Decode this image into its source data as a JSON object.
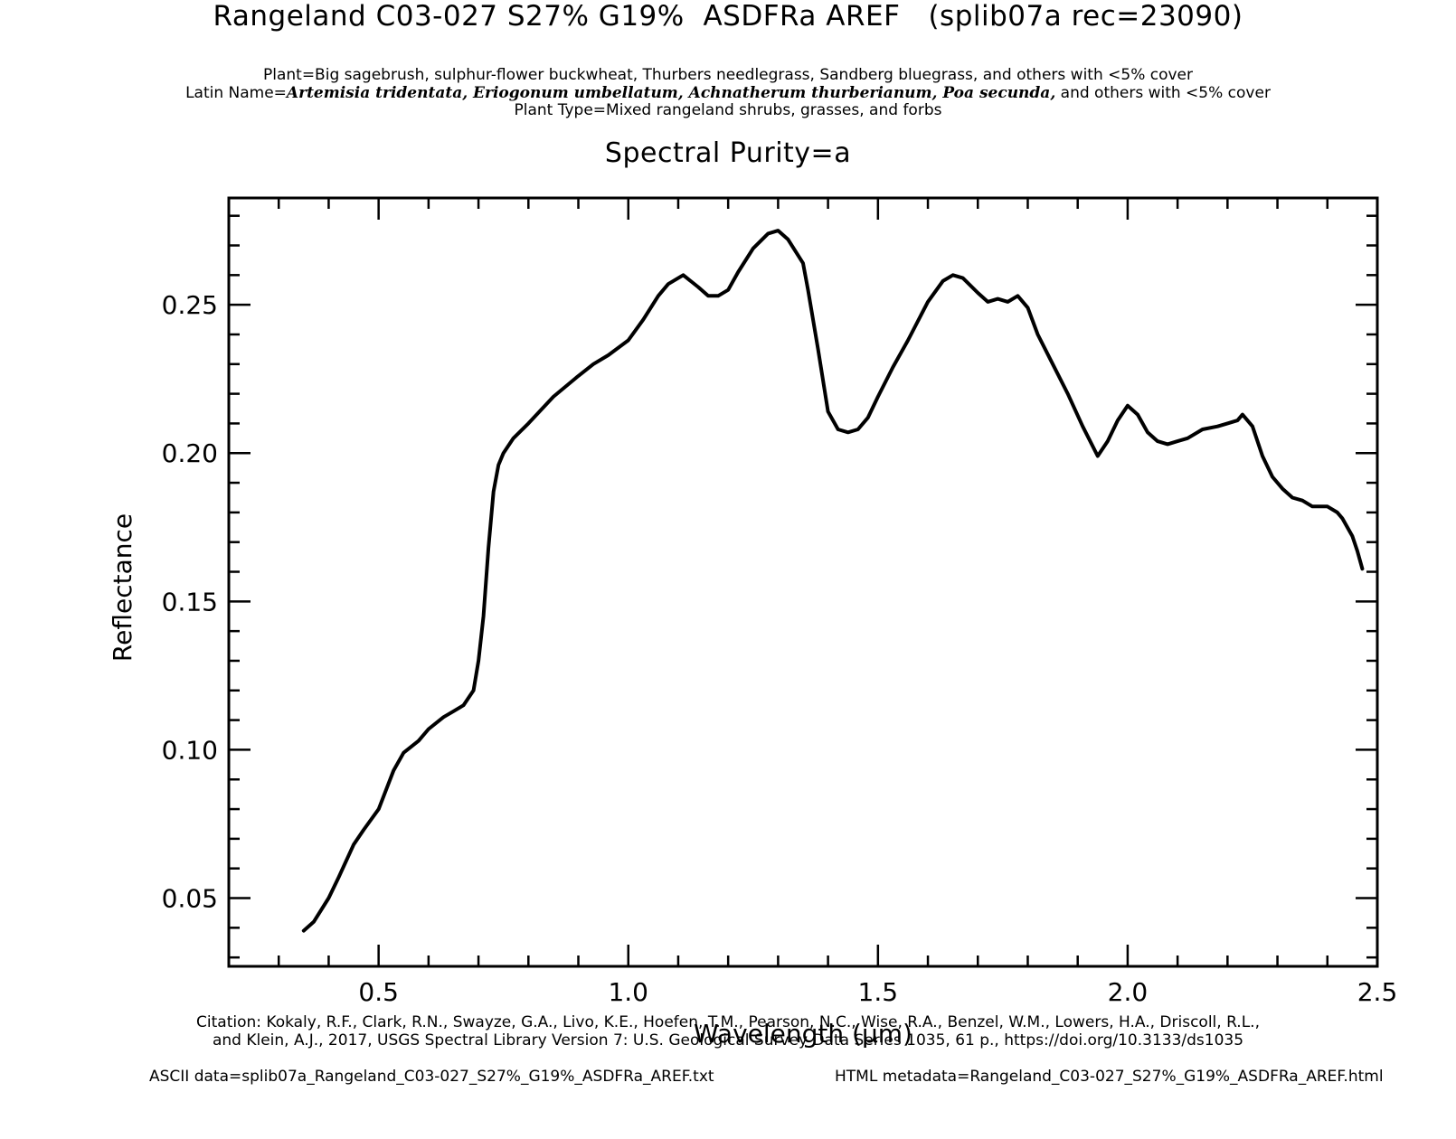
{
  "header": {
    "title": "Rangeland C03-027 S27% G19%  ASDFRa AREF   (splib07a rec=23090)",
    "plant": "Plant=Big sagebrush, sulphur-flower buckwheat, Thurbers needlegrass, Sandberg bluegrass, and others with <5% cover",
    "latin_prefix": "Latin Name=",
    "latin_names": "Artemisia tridentata, Eriogonum umbellatum, Achnatherum thurberianum, Poa secunda,",
    "latin_suffix": " and others with <5% cover",
    "plant_type": "Plant Type=Mixed rangeland shrubs, grasses, and forbs",
    "purity": "Spectral Purity=a"
  },
  "footer": {
    "citation_line1": "Citation: Kokaly, R.F., Clark, R.N., Swayze, G.A., Livo, K.E., Hoefen, T.M., Pearson, N.C., Wise, R.A., Benzel, W.M., Lowers, H.A., Driscoll, R.L.,",
    "citation_line2": "and Klein, A.J., 2017, USGS Spectral Library Version 7: U.S. Geological Survey Data Series 1035, 61 p., https://doi.org/10.3133/ds1035",
    "ascii": "ASCII data=splib07a_Rangeland_C03-027_S27%_G19%_ASDFRa_AREF.txt",
    "html": "HTML metadata=Rangeland_C03-027_S27%_G19%_ASDFRa_AREF.html"
  },
  "chart_data": {
    "type": "line",
    "xlabel": "Wavelength (μm)",
    "ylabel": "Reflectance",
    "xlim": [
      0.2,
      2.5
    ],
    "ylim": [
      0.027,
      0.286
    ],
    "xticks": [
      0.5,
      1.0,
      1.5,
      2.0,
      2.5
    ],
    "xtick_labels": [
      "0.5",
      "1.0",
      "1.5",
      "2.0",
      "2.5"
    ],
    "yticks": [
      0.05,
      0.1,
      0.15,
      0.2,
      0.25
    ],
    "ytick_labels": [
      "0.05",
      "0.10",
      "0.15",
      "0.20",
      "0.25"
    ],
    "x_minor_step": 0.1,
    "y_minor_step": 0.01,
    "grid": false,
    "line_color": "#000000",
    "series": [
      {
        "x": [
          0.35,
          0.37,
          0.4,
          0.42,
          0.45,
          0.47,
          0.5,
          0.53,
          0.55,
          0.58,
          0.6,
          0.63,
          0.65,
          0.67,
          0.69,
          0.7,
          0.71,
          0.72,
          0.73,
          0.74,
          0.75,
          0.77,
          0.8,
          0.85,
          0.9,
          0.93,
          0.96,
          1.0,
          1.03,
          1.06,
          1.08,
          1.11,
          1.14,
          1.16,
          1.18,
          1.2,
          1.22,
          1.25,
          1.28,
          1.3,
          1.32,
          1.35,
          1.36,
          1.38,
          1.4,
          1.42,
          1.44,
          1.46,
          1.48,
          1.5,
          1.53,
          1.56,
          1.6,
          1.63,
          1.65,
          1.67,
          1.7,
          1.72,
          1.74,
          1.76,
          1.78,
          1.8,
          1.82,
          1.85,
          1.88,
          1.91,
          1.94,
          1.96,
          1.98,
          2.0,
          2.02,
          2.04,
          2.06,
          2.08,
          2.1,
          2.12,
          2.15,
          2.18,
          2.2,
          2.22,
          2.23,
          2.25,
          2.27,
          2.29,
          2.31,
          2.33,
          2.35,
          2.37,
          2.4,
          2.42,
          2.43,
          2.45,
          2.46,
          2.47
        ],
        "y": [
          0.039,
          0.042,
          0.05,
          0.057,
          0.068,
          0.073,
          0.08,
          0.093,
          0.099,
          0.103,
          0.107,
          0.111,
          0.113,
          0.115,
          0.12,
          0.13,
          0.145,
          0.168,
          0.187,
          0.196,
          0.2,
          0.205,
          0.21,
          0.219,
          0.226,
          0.23,
          0.233,
          0.238,
          0.245,
          0.253,
          0.257,
          0.26,
          0.256,
          0.253,
          0.253,
          0.255,
          0.261,
          0.269,
          0.274,
          0.275,
          0.272,
          0.264,
          0.255,
          0.235,
          0.214,
          0.208,
          0.207,
          0.208,
          0.212,
          0.219,
          0.229,
          0.238,
          0.251,
          0.258,
          0.26,
          0.259,
          0.254,
          0.251,
          0.252,
          0.251,
          0.253,
          0.249,
          0.24,
          0.23,
          0.22,
          0.209,
          0.199,
          0.204,
          0.211,
          0.216,
          0.213,
          0.207,
          0.204,
          0.203,
          0.204,
          0.205,
          0.208,
          0.209,
          0.21,
          0.211,
          0.213,
          0.209,
          0.199,
          0.192,
          0.188,
          0.185,
          0.184,
          0.182,
          0.182,
          0.18,
          0.178,
          0.172,
          0.167,
          0.161
        ]
      }
    ]
  }
}
